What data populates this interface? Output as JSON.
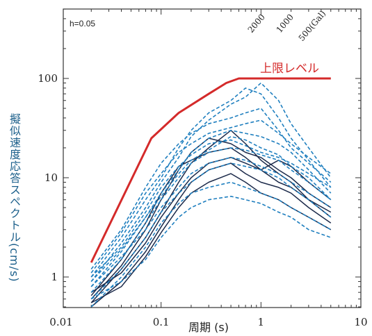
{
  "chart_data": {
    "type": "line",
    "title": "",
    "xlabel": "周期 (s)",
    "ylabel": "擬似速度応答スペクトル(cm/s)",
    "x_scale": "log",
    "y_scale": "log",
    "xlim": [
      0.02,
      5
    ],
    "ylim": [
      0.5,
      500
    ],
    "x_ticks": [
      "0.01",
      "0.1",
      "1",
      "10"
    ],
    "y_ticks": [
      "1",
      "10",
      "100"
    ],
    "damping_label": "h=0.05",
    "reference_lines": [
      "2000",
      "1000",
      "500(Gal)"
    ],
    "upper_limit": {
      "name": "上限レベル",
      "color": "#d42a2a",
      "x": [
        0.02,
        0.08,
        0.15,
        0.3,
        0.45,
        0.6,
        5
      ],
      "y": [
        1.4,
        25,
        45,
        70,
        90,
        100,
        100
      ]
    },
    "series_color_dashed": "#1f7fbf",
    "series_color_solid": "#1c2a4a",
    "series": [
      {
        "style": "solid",
        "x": [
          0.02,
          0.04,
          0.07,
          0.1,
          0.15,
          0.2,
          0.3,
          0.5,
          0.7,
          1,
          1.5,
          2,
          3,
          5
        ],
        "y": [
          0.55,
          1.2,
          2.5,
          4.5,
          9,
          14,
          20,
          30,
          22,
          15,
          11,
          9,
          6,
          4
        ]
      },
      {
        "style": "solid",
        "x": [
          0.02,
          0.04,
          0.07,
          0.1,
          0.15,
          0.2,
          0.3,
          0.5,
          0.7,
          1,
          1.5,
          2,
          3,
          5
        ],
        "y": [
          0.6,
          1.3,
          3.0,
          6,
          12,
          18,
          25,
          22,
          18,
          16,
          12,
          10,
          7,
          5
        ]
      },
      {
        "style": "solid",
        "x": [
          0.02,
          0.04,
          0.07,
          0.1,
          0.15,
          0.2,
          0.3,
          0.5,
          0.7,
          1,
          1.5,
          2,
          3,
          5
        ],
        "y": [
          0.5,
          0.9,
          1.8,
          3.2,
          6,
          9,
          12,
          14,
          11,
          9,
          8,
          7,
          5,
          3.5
        ]
      },
      {
        "style": "solid",
        "x": [
          0.02,
          0.04,
          0.07,
          0.1,
          0.15,
          0.2,
          0.3,
          0.5,
          0.7,
          1,
          1.5,
          2,
          3,
          5
        ],
        "y": [
          0.65,
          1.5,
          3.5,
          7,
          13,
          15,
          18,
          20,
          16,
          12,
          15,
          13,
          9,
          6
        ]
      },
      {
        "style": "solid",
        "x": [
          0.02,
          0.04,
          0.07,
          0.1,
          0.15,
          0.2,
          0.3,
          0.5,
          0.7,
          1,
          1.5,
          2,
          3,
          5
        ],
        "y": [
          0.7,
          1.1,
          2.2,
          4,
          7,
          10,
          14,
          16,
          14,
          12,
          9,
          8,
          6,
          4.5
        ]
      },
      {
        "style": "solid",
        "x": [
          0.02,
          0.04,
          0.07,
          0.1,
          0.15,
          0.2,
          0.3,
          0.5,
          0.7,
          1,
          1.5,
          2,
          3,
          5
        ],
        "y": [
          0.55,
          0.8,
          1.6,
          2.8,
          5,
          7,
          9,
          11,
          9,
          7,
          6,
          5,
          4,
          3
        ]
      },
      {
        "style": "dashed",
        "x": [
          0.02,
          0.04,
          0.07,
          0.1,
          0.15,
          0.2,
          0.3,
          0.5,
          0.7,
          1,
          1.5,
          2,
          3,
          5
        ],
        "y": [
          1.0,
          2.5,
          6,
          10,
          20,
          30,
          45,
          60,
          80,
          70,
          40,
          25,
          15,
          8
        ]
      },
      {
        "style": "dashed",
        "x": [
          0.02,
          0.04,
          0.07,
          0.1,
          0.15,
          0.2,
          0.3,
          0.5,
          0.7,
          1,
          1.5,
          2,
          3,
          5
        ],
        "y": [
          0.9,
          2.2,
          5,
          9,
          16,
          26,
          38,
          55,
          65,
          90,
          60,
          35,
          20,
          10
        ]
      },
      {
        "style": "dashed",
        "x": [
          0.02,
          0.04,
          0.07,
          0.1,
          0.15,
          0.2,
          0.3,
          0.5,
          0.7,
          1,
          1.5,
          2,
          3,
          5
        ],
        "y": [
          1.2,
          3.0,
          8,
          14,
          22,
          28,
          35,
          40,
          45,
          50,
          30,
          20,
          14,
          9
        ]
      },
      {
        "style": "dashed",
        "x": [
          0.02,
          0.04,
          0.07,
          0.1,
          0.15,
          0.2,
          0.3,
          0.5,
          0.7,
          1,
          1.5,
          2,
          3,
          5
        ],
        "y": [
          0.8,
          1.8,
          4,
          7,
          12,
          18,
          25,
          30,
          28,
          26,
          22,
          18,
          12,
          7
        ]
      },
      {
        "style": "dashed",
        "x": [
          0.02,
          0.04,
          0.07,
          0.1,
          0.15,
          0.2,
          0.3,
          0.5,
          0.7,
          1,
          1.5,
          2,
          3,
          5
        ],
        "y": [
          1.1,
          2.8,
          7,
          11,
          18,
          22,
          28,
          32,
          35,
          38,
          28,
          22,
          16,
          11
        ]
      },
      {
        "style": "dashed",
        "x": [
          0.02,
          0.04,
          0.07,
          0.1,
          0.15,
          0.2,
          0.3,
          0.5,
          0.7,
          1,
          1.5,
          2,
          3,
          5
        ],
        "y": [
          0.7,
          1.5,
          3.5,
          6,
          10,
          14,
          18,
          20,
          19,
          17,
          15,
          12,
          9,
          6
        ]
      },
      {
        "style": "dashed",
        "x": [
          0.02,
          0.04,
          0.07,
          0.1,
          0.15,
          0.2,
          0.3,
          0.5,
          0.7,
          1,
          1.5,
          2,
          3,
          5
        ],
        "y": [
          0.6,
          1.2,
          2.5,
          4.5,
          7,
          9,
          12,
          14,
          13,
          12,
          10,
          8,
          6,
          4
        ]
      },
      {
        "style": "dashed",
        "x": [
          0.02,
          0.04,
          0.07,
          0.1,
          0.15,
          0.2,
          0.3,
          0.5,
          0.7,
          1,
          1.5,
          2,
          3,
          5
        ],
        "y": [
          0.5,
          1.0,
          2.0,
          3.5,
          5.5,
          7,
          8,
          9,
          8,
          7,
          6,
          5,
          4,
          3
        ]
      },
      {
        "style": "dashed",
        "x": [
          0.02,
          0.04,
          0.07,
          0.1,
          0.15,
          0.2,
          0.3,
          0.5,
          0.7,
          1,
          1.5,
          2,
          3,
          5
        ],
        "y": [
          0.6,
          0.9,
          1.5,
          2.5,
          4,
          5,
          6,
          6.5,
          6,
          5.5,
          4.5,
          4,
          3,
          2.5
        ]
      },
      {
        "style": "dashed",
        "x": [
          0.02,
          0.04,
          0.07,
          0.1,
          0.15,
          0.2,
          0.3,
          0.5,
          0.7,
          1,
          1.5,
          2,
          3,
          5
        ],
        "y": [
          1.0,
          2.0,
          4.5,
          8,
          13,
          17,
          22,
          24,
          21,
          18,
          16,
          14,
          11,
          8
        ]
      },
      {
        "style": "dashed",
        "x": [
          0.02,
          0.04,
          0.07,
          0.1,
          0.15,
          0.2,
          0.3,
          0.5,
          0.7,
          1,
          1.5,
          2,
          3,
          5
        ],
        "y": [
          0.9,
          1.9,
          4,
          6.5,
          11,
          15,
          19,
          26,
          24,
          20,
          17,
          13,
          10,
          6
        ]
      },
      {
        "style": "dashed",
        "x": [
          0.02,
          0.04,
          0.07,
          0.1,
          0.15,
          0.2,
          0.3,
          0.5,
          0.7,
          1,
          1.5,
          2,
          3,
          5
        ],
        "y": [
          0.8,
          1.6,
          3,
          5,
          8,
          11,
          14,
          16,
          15,
          13,
          11,
          9,
          7,
          5
        ]
      }
    ]
  }
}
